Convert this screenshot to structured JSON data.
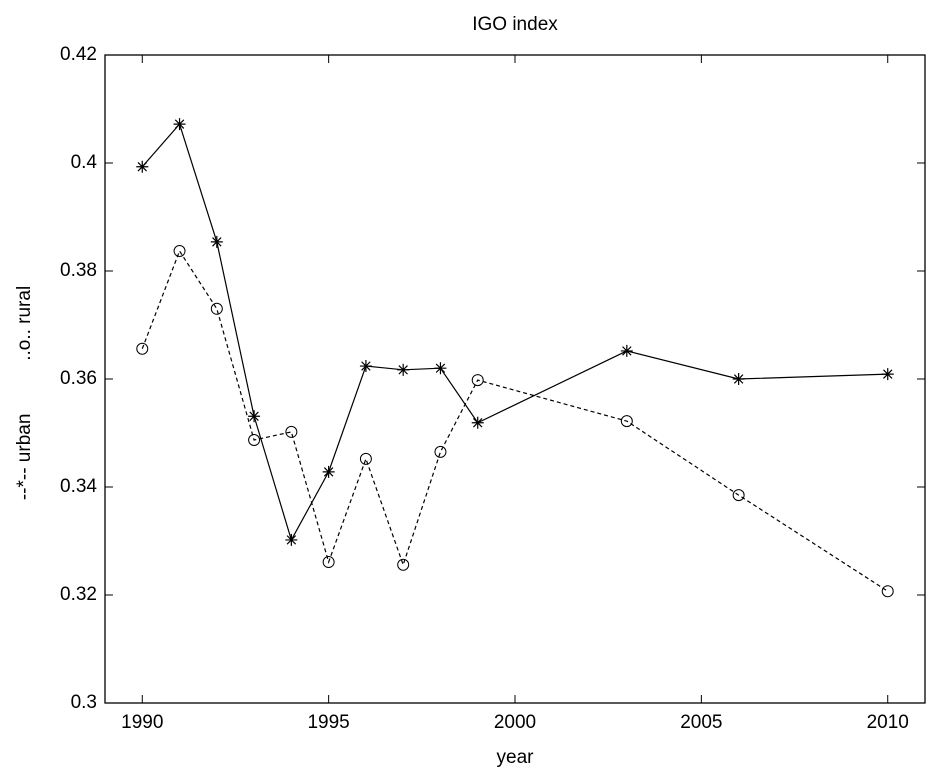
{
  "chart_data": {
    "type": "line",
    "title": "IGO index",
    "x_label": "year",
    "y_label": "--*-- urban          ..o.. rural",
    "x": [
      1990,
      1991,
      1992,
      1993,
      1994,
      1995,
      1996,
      1997,
      1998,
      1999,
      2003,
      2006,
      2010
    ],
    "series": [
      {
        "color": "#000000",
        "marker": "star",
        "dash": "solid",
        "values": [
          0.3993,
          0.4072,
          0.3854,
          0.3531,
          0.3302,
          0.3428,
          0.3624,
          0.3617,
          0.362,
          0.3519,
          0.3652,
          0.36,
          0.3609
        ]
      },
      {
        "color": "#000000",
        "marker": "circle",
        "dash": "dashed",
        "values": [
          0.3656,
          0.3837,
          0.373,
          0.3487,
          0.3502,
          0.3261,
          0.3452,
          0.3256,
          0.3465,
          0.3598,
          0.3522,
          0.3385,
          0.3207
        ]
      }
    ],
    "xlim": [
      1989,
      2011
    ],
    "xticks": [
      1990,
      1995,
      2000,
      2005,
      2010
    ],
    "ylim": [
      0.3,
      0.42
    ],
    "yticks": [
      {
        "value": 0.3,
        "label": "0.3"
      },
      0.32,
      0.34,
      0.36,
      0.38,
      {
        "value": 0.4,
        "label": "0.4"
      },
      0.42
    ]
  }
}
